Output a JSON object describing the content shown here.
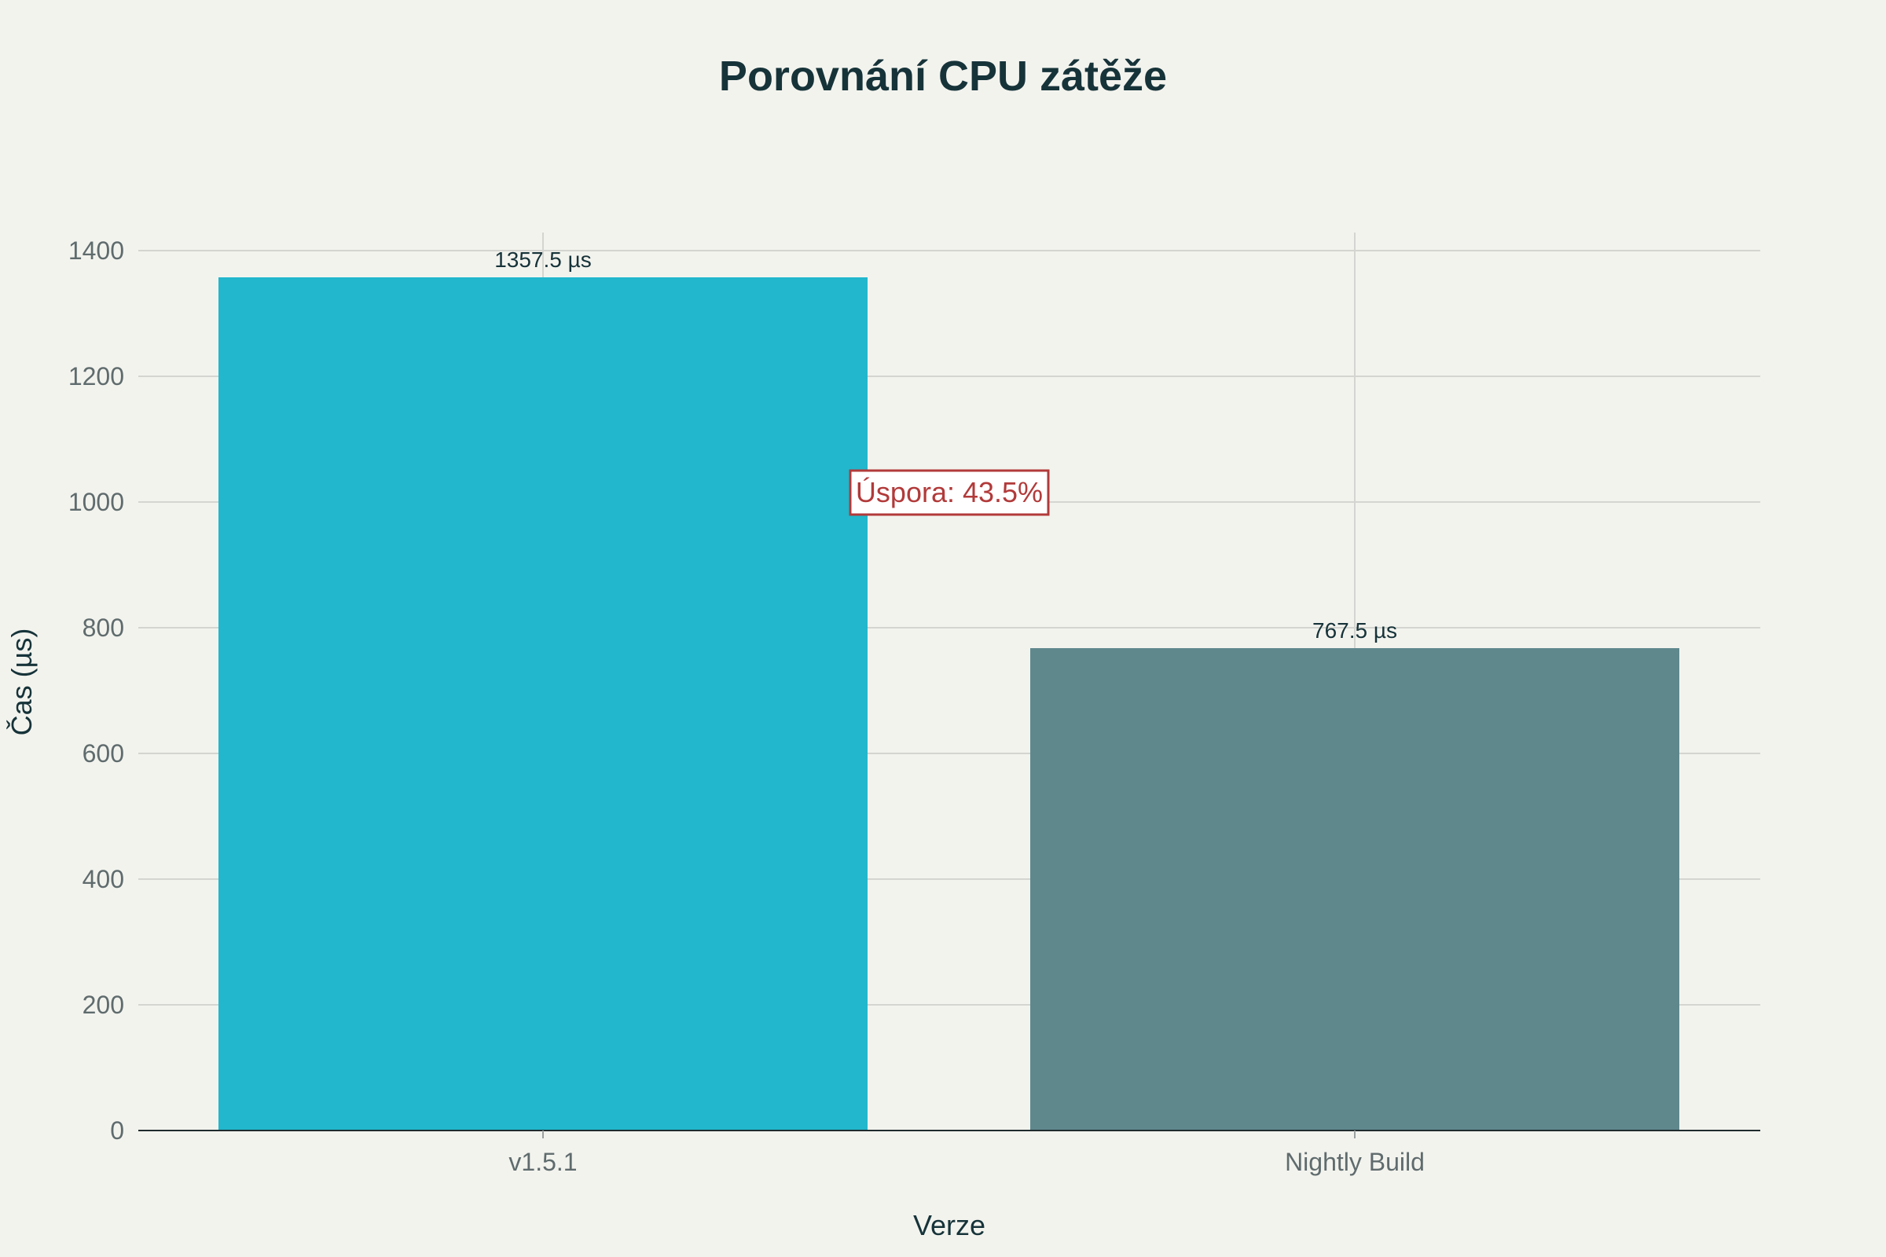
{
  "chart_data": {
    "type": "bar",
    "title": "Porovnání CPU zátěže",
    "xlabel": "Verze",
    "ylabel": "Čas (µs)",
    "categories": [
      "v1.5.1",
      "Nightly Build"
    ],
    "values": [
      1357.5,
      767.5
    ],
    "data_labels": [
      "1357.5 µs",
      "767.5 µs"
    ],
    "yticks": [
      "0",
      "200",
      "400",
      "600",
      "800",
      "1000",
      "1200",
      "1400"
    ],
    "ylim": [
      0,
      1430
    ],
    "grid": true,
    "bar_colors": [
      "#22b7cc",
      "#5f888d"
    ],
    "annotation": {
      "text": "Úspora: 43.5%",
      "y": 1015,
      "color": "#b23a3a"
    }
  }
}
